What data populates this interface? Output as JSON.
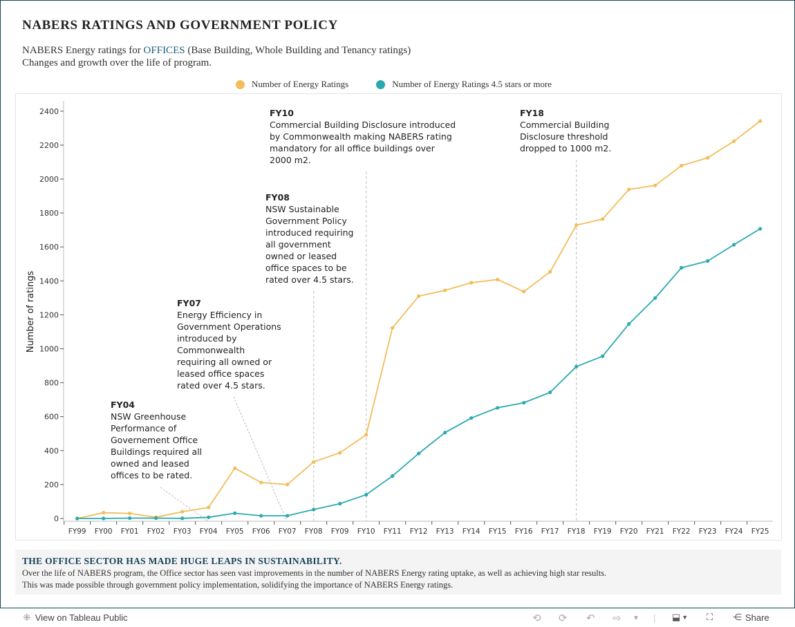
{
  "header": {
    "title": "NABERS RATINGS AND GOVERNMENT POLICY",
    "subtitle_prefix": "NABERS Energy ratings for ",
    "subtitle_accent": "OFFICES",
    "subtitle_suffix": " (Base Building, Whole Building and Tenancy ratings)",
    "subtitle_line2": "Changes and growth over the life of program."
  },
  "colors": {
    "total": "#f2bd5a",
    "high_star": "#2aa9af",
    "accent": "#1b5a7a",
    "frame": "#17435a"
  },
  "chart_data": {
    "type": "line",
    "title": "",
    "xlabel": "",
    "ylabel": "Number of ratings",
    "ylim": [
      0,
      2450
    ],
    "yticks": [
      0,
      200,
      400,
      600,
      800,
      1000,
      1200,
      1400,
      1600,
      1800,
      2000,
      2200,
      2400
    ],
    "grid": false,
    "legend_position": "top-center",
    "categories": [
      "FY99",
      "FY00",
      "FY01",
      "FY02",
      "FY03",
      "FY04",
      "FY05",
      "FY06",
      "FY07",
      "FY08",
      "FY09",
      "FY10",
      "FY11",
      "FY12",
      "FY13",
      "FY14",
      "FY15",
      "FY16",
      "FY17",
      "FY18",
      "FY19",
      "FY20",
      "FY21",
      "FY22",
      "FY23",
      "FY24",
      "FY25"
    ],
    "series": [
      {
        "name": "Number of Energy Ratings",
        "color": "#f2bd5a",
        "values": [
          0,
          34,
          30,
          7,
          40,
          65,
          296,
          212,
          200,
          333,
          387,
          493,
          1123,
          1310,
          1344,
          1389,
          1408,
          1337,
          1453,
          1728,
          1764,
          1939,
          1962,
          2079,
          2125,
          2223,
          2342
        ]
      },
      {
        "name": "Number of Energy Ratings 4.5 stars or more",
        "color": "#2aa9af",
        "values": [
          0,
          0,
          2,
          2,
          1,
          7,
          31,
          16,
          16,
          53,
          87,
          140,
          250,
          383,
          506,
          592,
          652,
          682,
          743,
          895,
          956,
          1146,
          1299,
          1477,
          1517,
          1613,
          1707
        ]
      }
    ],
    "reference_lines": [
      "FY08",
      "FY10",
      "FY18"
    ],
    "annotations": [
      {
        "category": "FY04",
        "heading": "FY04",
        "lines": [
          "NSW Greenhouse",
          "Performance of",
          "Governement Office",
          "Buildings required all",
          "owned and leased",
          "offices to be rated."
        ]
      },
      {
        "category": "FY07",
        "heading": "FY07",
        "lines": [
          "Energy Efficiency in",
          "Government Operations",
          "introduced by",
          "Commonwealth",
          "requiring all owned or",
          "leased office spaces",
          "rated over 4.5 stars."
        ]
      },
      {
        "category": "FY08",
        "heading": "FY08",
        "lines": [
          "NSW Sustainable",
          "Government Policy",
          "introduced requiring",
          "all government",
          "owned or leased",
          "office spaces to be",
          "rated over 4.5 stars."
        ]
      },
      {
        "category": "FY10",
        "heading": "FY10",
        "lines": [
          "Commercial Building Disclosure introduced",
          "by Commonwealth making NABERS rating",
          "mandatory for all office buildings over",
          "2000 m2."
        ]
      },
      {
        "category": "FY18",
        "heading": "FY18",
        "lines": [
          "Commercial Building",
          "Disclosure threshold",
          "dropped to 1000 m2."
        ]
      }
    ]
  },
  "footer": {
    "heading": "THE OFFICE SECTOR HAS MADE HUGE LEAPS IN SUSTAINABILITY.",
    "line1": "Over the life of NABERS program, the Office sector has seen vast improvements in the number of NABERS Energy rating uptake, as well as achieving high star results.",
    "line2": "This was made possible through government policy implementation, solidifying the importance of NABERS Energy ratings."
  },
  "toolbar": {
    "view_label": "View on Tableau Public",
    "share_label": "Share",
    "icons": [
      "tableau-logo-icon",
      "undo-icon",
      "redo-icon",
      "revert-icon",
      "refresh-icon",
      "dropdown-icon",
      "download-icon",
      "fullscreen-icon",
      "share-icon"
    ]
  }
}
